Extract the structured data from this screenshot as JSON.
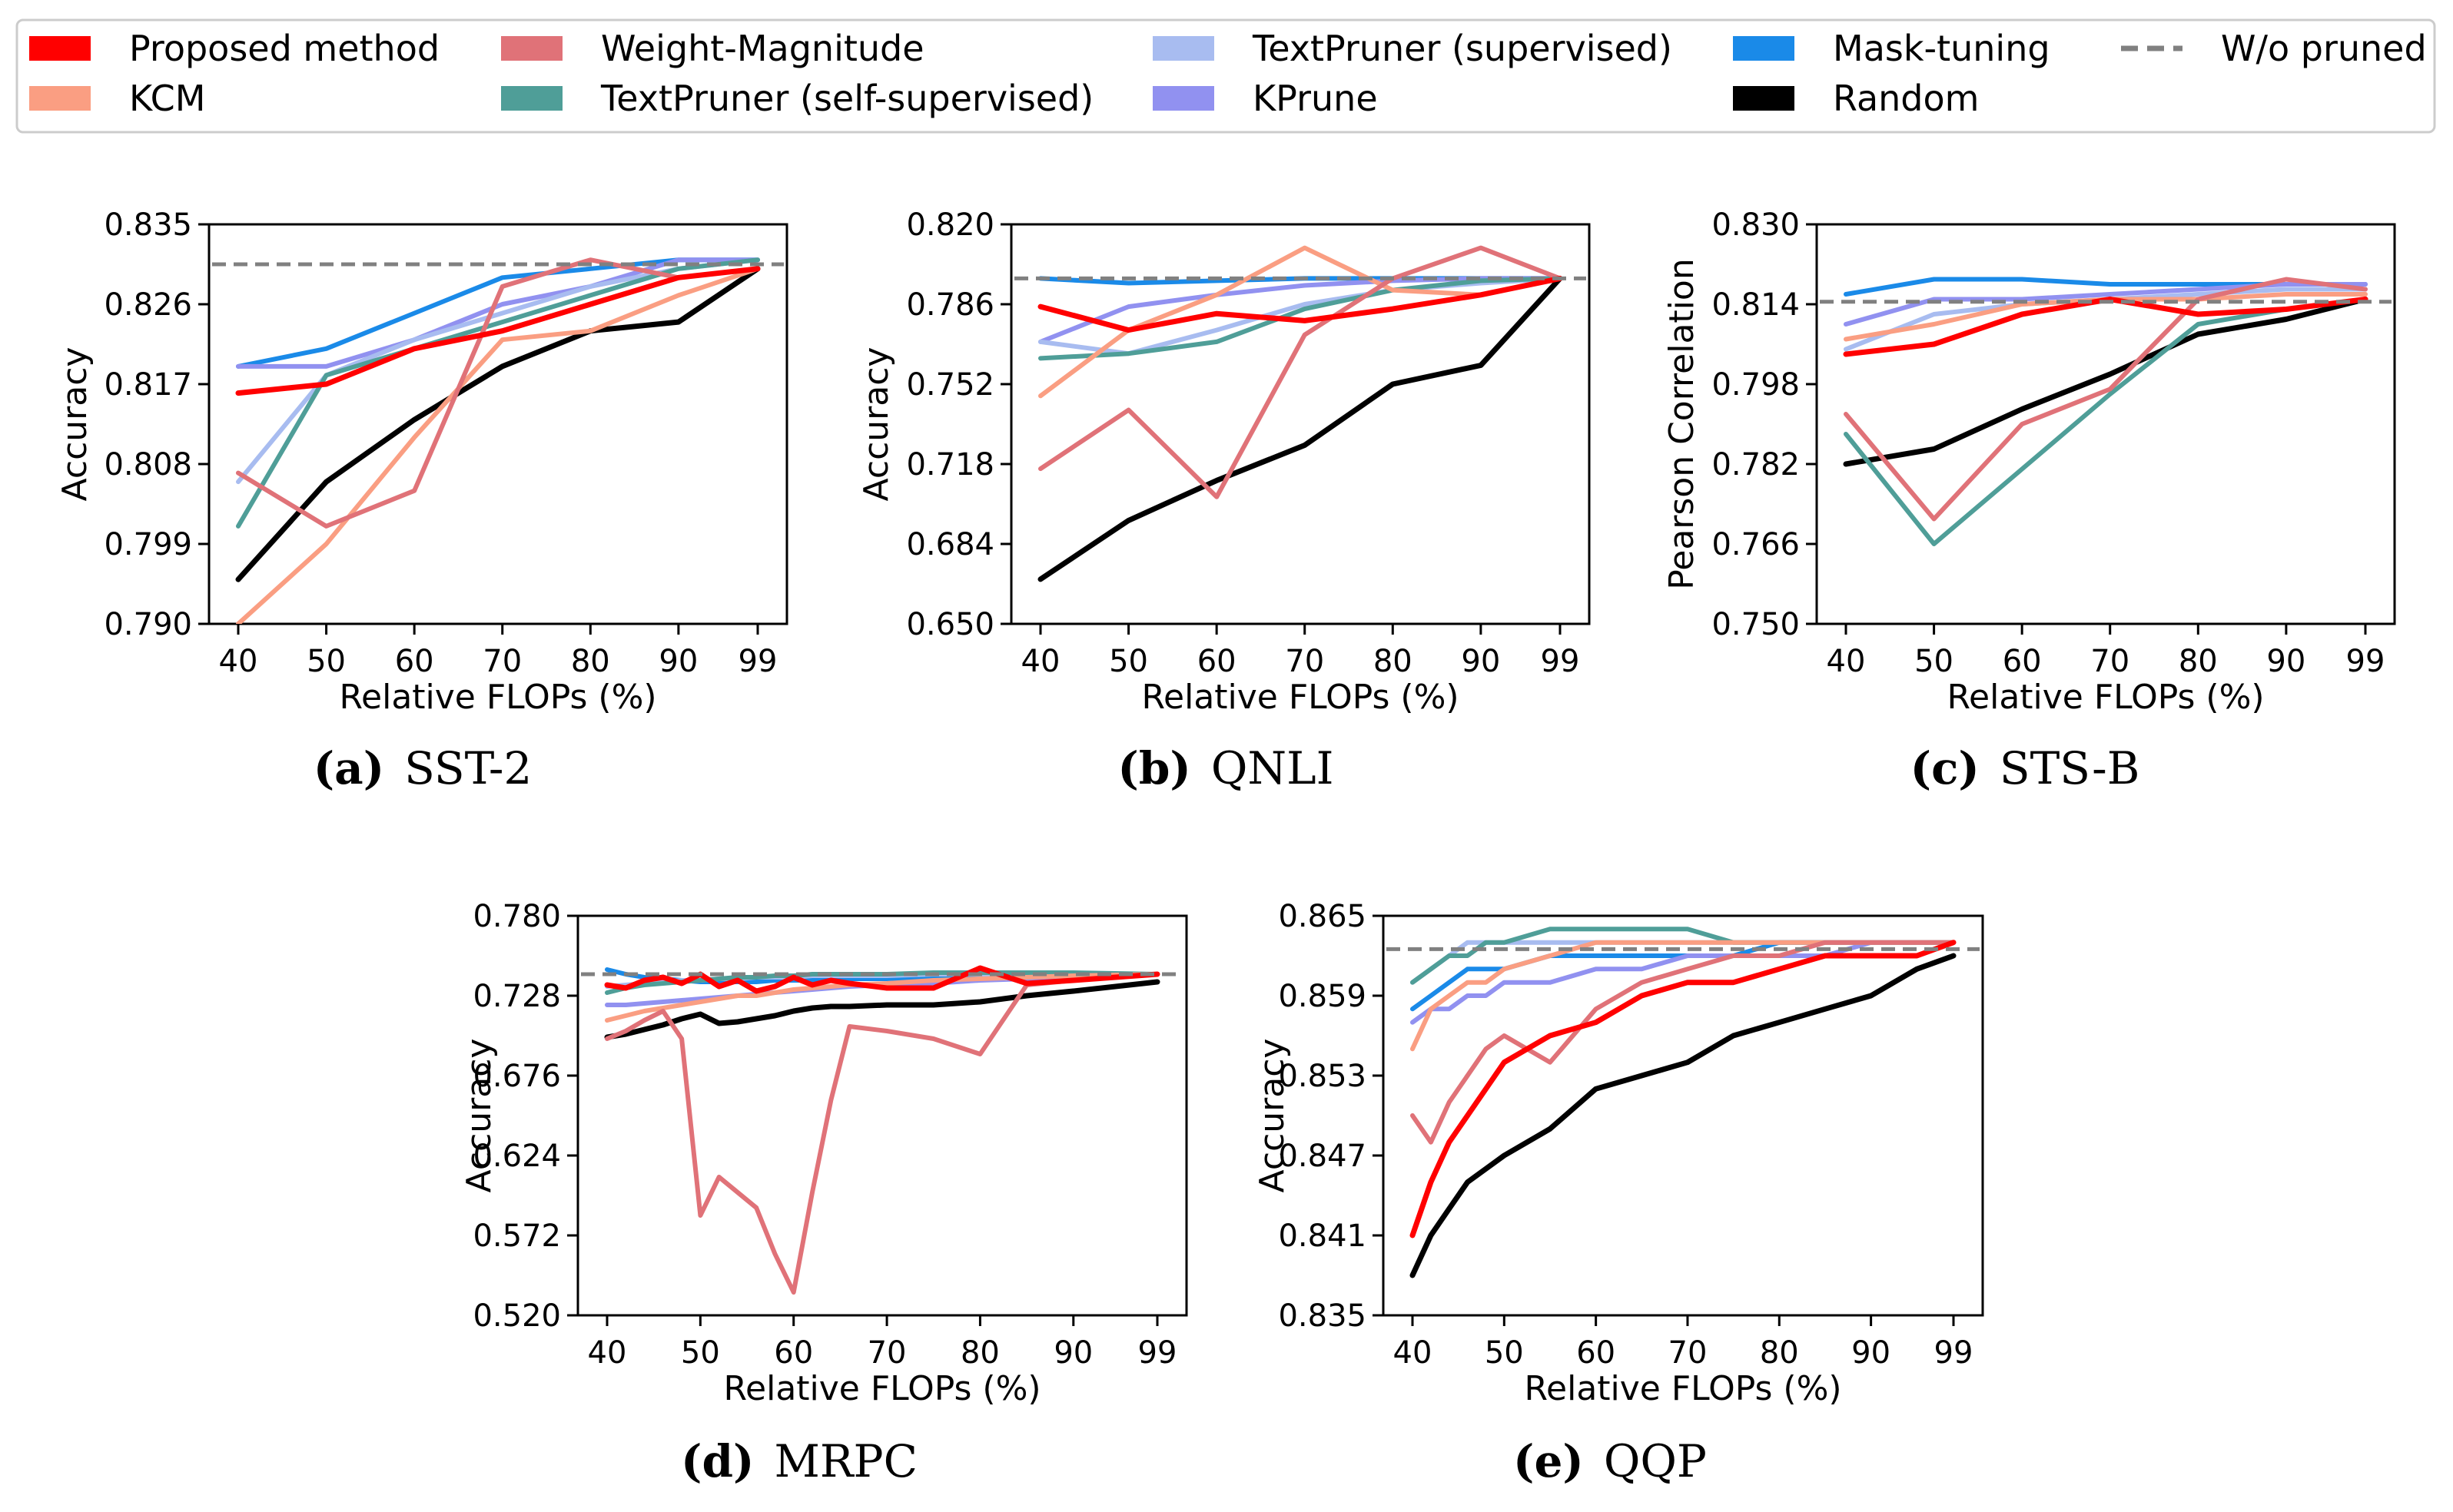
{
  "legend": {
    "entries": [
      {
        "label": "Proposed method",
        "color": "#ff0000",
        "kind": "patch"
      },
      {
        "label": "KCM",
        "color": "#fa9e82",
        "kind": "patch"
      },
      {
        "label": "Weight-Magnitude",
        "color": "#e07278",
        "kind": "patch"
      },
      {
        "label": "TextPruner (self-supervised)",
        "color": "#4f9e98",
        "kind": "patch"
      },
      {
        "label": "TextPruner (supervised)",
        "color": "#a8bcf0",
        "kind": "patch"
      },
      {
        "label": "KPrune",
        "color": "#9191f0",
        "kind": "patch"
      },
      {
        "label": "Mask-tuning",
        "color": "#1a8ae8",
        "kind": "patch"
      },
      {
        "label": "Random",
        "color": "#000000",
        "kind": "patch"
      },
      {
        "label": "W/o pruned",
        "color": "#808080",
        "kind": "dashed"
      }
    ]
  },
  "chart_data": [
    {
      "type": "line",
      "title": "SST-2",
      "caption_letter": "(a)",
      "xlabel": "Relative FLOPs (%)",
      "ylabel": "Accuracy",
      "xticks": [
        "40",
        "50",
        "60",
        "70",
        "80",
        "90",
        "99"
      ],
      "yticks": [
        "0.790",
        "0.799",
        "0.808",
        "0.817",
        "0.826",
        "0.835"
      ],
      "ylim": [
        0.79,
        0.835
      ],
      "baseline": 0.8305,
      "x": [
        40,
        50,
        60,
        70,
        80,
        90,
        99
      ],
      "series": [
        {
          "name": "Proposed method",
          "color": "#ff0000",
          "values": [
            0.816,
            0.817,
            0.821,
            0.823,
            0.826,
            0.829,
            0.83
          ]
        },
        {
          "name": "KCM",
          "color": "#fa9e82",
          "values": [
            0.79,
            0.799,
            0.811,
            0.822,
            0.823,
            0.827,
            0.83
          ]
        },
        {
          "name": "Weight-Magnitude",
          "color": "#e07278",
          "values": [
            0.807,
            0.801,
            0.805,
            0.828,
            0.831,
            0.829,
            0.83
          ]
        },
        {
          "name": "TextPruner (self-supervised)",
          "color": "#4f9e98",
          "values": [
            0.801,
            0.818,
            0.821,
            0.824,
            0.827,
            0.83,
            0.831
          ]
        },
        {
          "name": "TextPruner (supervised)",
          "color": "#a8bcf0",
          "values": [
            0.806,
            0.818,
            0.822,
            0.825,
            0.828,
            0.83,
            0.831
          ]
        },
        {
          "name": "KPrune",
          "color": "#9191f0",
          "values": [
            0.819,
            0.819,
            0.822,
            0.826,
            0.828,
            0.831,
            0.831
          ]
        },
        {
          "name": "Mask-tuning",
          "color": "#1a8ae8",
          "values": [
            0.819,
            0.821,
            0.825,
            0.829,
            0.83,
            0.831,
            0.831
          ]
        },
        {
          "name": "Random",
          "color": "#000000",
          "values": [
            0.795,
            0.806,
            0.813,
            0.819,
            0.823,
            0.824,
            0.83
          ]
        }
      ]
    },
    {
      "type": "line",
      "title": "QNLI",
      "caption_letter": "(b)",
      "xlabel": "Relative FLOPs (%)",
      "ylabel": "Accuracy",
      "xticks": [
        "40",
        "50",
        "60",
        "70",
        "80",
        "90",
        "99"
      ],
      "yticks": [
        "0.650",
        "0.684",
        "0.718",
        "0.752",
        "0.786",
        "0.820"
      ],
      "ylim": [
        0.65,
        0.82
      ],
      "baseline": 0.797,
      "x": [
        40,
        50,
        60,
        70,
        80,
        90,
        99
      ],
      "series": [
        {
          "name": "Proposed method",
          "color": "#ff0000",
          "values": [
            0.785,
            0.775,
            0.782,
            0.779,
            0.784,
            0.79,
            0.797
          ]
        },
        {
          "name": "KCM",
          "color": "#fa9e82",
          "values": [
            0.747,
            0.775,
            0.79,
            0.81,
            0.792,
            0.79,
            0.797
          ]
        },
        {
          "name": "Weight-Magnitude",
          "color": "#e07278",
          "values": [
            0.716,
            0.741,
            0.704,
            0.773,
            0.797,
            0.81,
            0.797
          ]
        },
        {
          "name": "TextPruner (self-supervised)",
          "color": "#4f9e98",
          "values": [
            0.763,
            0.765,
            0.77,
            0.784,
            0.792,
            0.796,
            0.797
          ]
        },
        {
          "name": "TextPruner (supervised)",
          "color": "#a8bcf0",
          "values": [
            0.77,
            0.765,
            0.775,
            0.786,
            0.792,
            0.795,
            0.797
          ]
        },
        {
          "name": "KPrune",
          "color": "#9191f0",
          "values": [
            0.77,
            0.785,
            0.79,
            0.794,
            0.796,
            0.797,
            0.797
          ]
        },
        {
          "name": "Mask-tuning",
          "color": "#1a8ae8",
          "values": [
            0.797,
            0.795,
            0.796,
            0.797,
            0.797,
            0.797,
            0.797
          ]
        },
        {
          "name": "Random",
          "color": "#000000",
          "values": [
            0.669,
            0.694,
            0.711,
            0.726,
            0.752,
            0.76,
            0.797
          ]
        }
      ]
    },
    {
      "type": "line",
      "title": "STS-B",
      "caption_letter": "(c)",
      "xlabel": "Relative FLOPs (%)",
      "ylabel": "Pearson Correlation",
      "xticks": [
        "40",
        "50",
        "60",
        "70",
        "80",
        "90",
        "99"
      ],
      "yticks": [
        "0.750",
        "0.766",
        "0.782",
        "0.798",
        "0.814",
        "0.830"
      ],
      "ylim": [
        0.75,
        0.83
      ],
      "baseline": 0.8145,
      "x": [
        40,
        50,
        60,
        70,
        80,
        90,
        99
      ],
      "series": [
        {
          "name": "Proposed method",
          "color": "#ff0000",
          "values": [
            0.804,
            0.806,
            0.812,
            0.815,
            0.812,
            0.813,
            0.815
          ]
        },
        {
          "name": "KCM",
          "color": "#fa9e82",
          "values": [
            0.807,
            0.81,
            0.814,
            0.815,
            0.815,
            0.816,
            0.816
          ]
        },
        {
          "name": "Weight-Magnitude",
          "color": "#e07278",
          "values": [
            0.792,
            0.771,
            0.79,
            0.797,
            0.815,
            0.819,
            0.817
          ]
        },
        {
          "name": "TextPruner (self-supervised)",
          "color": "#4f9e98",
          "values": [
            0.788,
            0.766,
            0.781,
            0.796,
            0.81,
            0.813,
            0.815
          ]
        },
        {
          "name": "TextPruner (supervised)",
          "color": "#a8bcf0",
          "values": [
            0.805,
            0.812,
            0.814,
            0.815,
            0.816,
            0.817,
            0.817
          ]
        },
        {
          "name": "KPrune",
          "color": "#9191f0",
          "values": [
            0.81,
            0.815,
            0.815,
            0.816,
            0.817,
            0.818,
            0.818
          ]
        },
        {
          "name": "Mask-tuning",
          "color": "#1a8ae8",
          "values": [
            0.816,
            0.819,
            0.819,
            0.818,
            0.818,
            0.818,
            0.818
          ]
        },
        {
          "name": "Random",
          "color": "#000000",
          "values": [
            0.782,
            0.785,
            0.793,
            0.8,
            0.808,
            0.811,
            0.815
          ]
        }
      ]
    },
    {
      "type": "line",
      "title": "MRPC",
      "caption_letter": "(d)",
      "xlabel": "Relative FLOPs (%)",
      "ylabel": "Accuracy",
      "xticks": [
        "40",
        "50",
        "60",
        "70",
        "80",
        "90",
        "99"
      ],
      "yticks": [
        "0.520",
        "0.572",
        "0.624",
        "0.676",
        "0.728",
        "0.780"
      ],
      "ylim": [
        0.52,
        0.78
      ],
      "baseline": 0.742,
      "x": [
        40,
        42,
        44,
        46,
        48,
        50,
        52,
        54,
        56,
        58,
        60,
        62,
        64,
        66,
        70,
        75,
        80,
        85,
        90,
        99
      ],
      "series": [
        {
          "name": "Proposed method",
          "color": "#ff0000",
          "values": [
            0.735,
            0.733,
            0.738,
            0.74,
            0.736,
            0.742,
            0.734,
            0.738,
            0.731,
            0.734,
            0.74,
            0.735,
            0.738,
            0.736,
            0.733,
            0.733,
            0.746,
            0.736,
            0.738,
            0.742
          ]
        },
        {
          "name": "KCM",
          "color": "#fa9e82",
          "values": [
            0.712,
            0.715,
            0.718,
            0.72,
            0.722,
            0.724,
            0.726,
            0.728,
            0.728,
            0.73,
            0.732,
            0.733,
            0.734,
            0.735,
            0.736,
            0.738,
            0.739,
            0.74,
            0.741,
            0.742
          ]
        },
        {
          "name": "Weight-Magnitude",
          "color": "#e07278",
          "values": [
            0.7,
            0.705,
            0.712,
            0.718,
            0.7,
            0.585,
            0.61,
            0.6,
            0.59,
            0.56,
            0.535,
            0.6,
            0.66,
            0.708,
            0.705,
            0.7,
            0.69,
            0.735,
            0.738,
            0.742
          ]
        },
        {
          "name": "TextPruner (self-supervised)",
          "color": "#4f9e98",
          "values": [
            0.73,
            0.733,
            0.735,
            0.736,
            0.737,
            0.738,
            0.739,
            0.74,
            0.74,
            0.741,
            0.741,
            0.742,
            0.742,
            0.742,
            0.742,
            0.743,
            0.743,
            0.743,
            0.743,
            0.742
          ]
        },
        {
          "name": "TextPruner (supervised)",
          "color": "#a8bcf0",
          "values": [
            0.734,
            0.735,
            0.736,
            0.737,
            0.738,
            0.738,
            0.739,
            0.739,
            0.74,
            0.74,
            0.74,
            0.741,
            0.741,
            0.741,
            0.741,
            0.742,
            0.742,
            0.742,
            0.742,
            0.742
          ]
        },
        {
          "name": "KPrune",
          "color": "#9191f0",
          "values": [
            0.722,
            0.722,
            0.723,
            0.724,
            0.725,
            0.726,
            0.727,
            0.728,
            0.729,
            0.73,
            0.731,
            0.732,
            0.733,
            0.734,
            0.735,
            0.736,
            0.738,
            0.739,
            0.74,
            0.742
          ]
        },
        {
          "name": "Mask-tuning",
          "color": "#1a8ae8",
          "values": [
            0.745,
            0.742,
            0.74,
            0.739,
            0.738,
            0.737,
            0.737,
            0.737,
            0.737,
            0.738,
            0.738,
            0.738,
            0.739,
            0.739,
            0.739,
            0.74,
            0.74,
            0.741,
            0.741,
            0.742
          ]
        },
        {
          "name": "Random",
          "color": "#000000",
          "values": [
            0.701,
            0.703,
            0.706,
            0.709,
            0.713,
            0.716,
            0.71,
            0.711,
            0.713,
            0.715,
            0.718,
            0.72,
            0.721,
            0.721,
            0.722,
            0.722,
            0.724,
            0.728,
            0.731,
            0.737
          ]
        }
      ]
    },
    {
      "type": "line",
      "title": "QQP",
      "caption_letter": "(e)",
      "xlabel": "Relative FLOPs (%)",
      "ylabel": "Accuracy",
      "xticks": [
        "40",
        "50",
        "60",
        "70",
        "80",
        "90",
        "99"
      ],
      "yticks": [
        "0.835",
        "0.841",
        "0.847",
        "0.853",
        "0.859",
        "0.865"
      ],
      "ylim": [
        0.835,
        0.865
      ],
      "baseline": 0.8625,
      "x": [
        40,
        42,
        44,
        46,
        48,
        50,
        55,
        60,
        65,
        70,
        75,
        80,
        85,
        90,
        95,
        99
      ],
      "series": [
        {
          "name": "Proposed method",
          "color": "#ff0000",
          "values": [
            0.841,
            0.845,
            0.848,
            0.85,
            0.852,
            0.854,
            0.856,
            0.857,
            0.859,
            0.86,
            0.86,
            0.861,
            0.862,
            0.862,
            0.862,
            0.863
          ]
        },
        {
          "name": "KCM",
          "color": "#fa9e82",
          "values": [
            0.855,
            0.858,
            0.859,
            0.86,
            0.86,
            0.861,
            0.862,
            0.863,
            0.863,
            0.863,
            0.863,
            0.863,
            0.863,
            0.863,
            0.863,
            0.863
          ]
        },
        {
          "name": "Weight-Magnitude",
          "color": "#e07278",
          "values": [
            0.85,
            0.848,
            0.851,
            0.853,
            0.855,
            0.856,
            0.854,
            0.858,
            0.86,
            0.861,
            0.862,
            0.862,
            0.863,
            0.863,
            0.863,
            0.863
          ]
        },
        {
          "name": "TextPruner (self-supervised)",
          "color": "#4f9e98",
          "values": [
            0.86,
            0.861,
            0.862,
            0.862,
            0.863,
            0.863,
            0.864,
            0.864,
            0.864,
            0.864,
            0.863,
            0.863,
            0.863,
            0.863,
            0.863,
            0.863
          ]
        },
        {
          "name": "TextPruner (supervised)",
          "color": "#a8bcf0",
          "values": [
            0.86,
            0.861,
            0.862,
            0.863,
            0.863,
            0.863,
            0.863,
            0.863,
            0.863,
            0.863,
            0.863,
            0.863,
            0.863,
            0.863,
            0.863,
            0.863
          ]
        },
        {
          "name": "KPrune",
          "color": "#9191f0",
          "values": [
            0.857,
            0.858,
            0.858,
            0.859,
            0.859,
            0.86,
            0.86,
            0.861,
            0.861,
            0.862,
            0.862,
            0.862,
            0.862,
            0.863,
            0.863,
            0.863
          ]
        },
        {
          "name": "Mask-tuning",
          "color": "#1a8ae8",
          "values": [
            0.858,
            0.859,
            0.86,
            0.861,
            0.861,
            0.861,
            0.862,
            0.862,
            0.862,
            0.862,
            0.862,
            0.863,
            0.863,
            0.863,
            0.863,
            0.863
          ]
        },
        {
          "name": "Random",
          "color": "#000000",
          "values": [
            0.838,
            0.841,
            0.843,
            0.845,
            0.846,
            0.847,
            0.849,
            0.852,
            0.853,
            0.854,
            0.856,
            0.857,
            0.858,
            0.859,
            0.861,
            0.862
          ]
        }
      ]
    }
  ]
}
